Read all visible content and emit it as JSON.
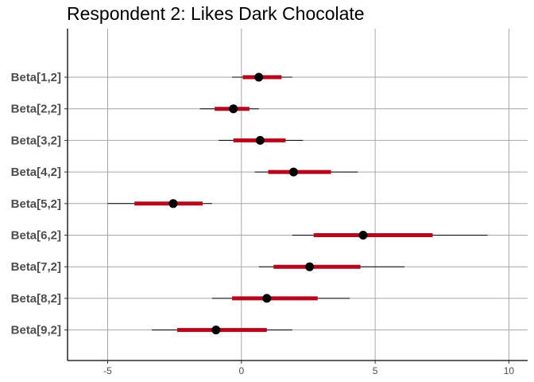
{
  "chart_data": {
    "type": "interval",
    "title": "Respondent 2: Likes Dark Chocolate",
    "xlabel": "",
    "ylabel": "",
    "xlim": [
      -6.5,
      10.7
    ],
    "x_ticks": [
      -5,
      0,
      5,
      10
    ],
    "x_tick_labels": [
      "-5",
      "0",
      "5",
      "10"
    ],
    "grid": true,
    "categories": [
      "Beta[1,2]",
      "Beta[2,2]",
      "Beta[3,2]",
      "Beta[4,2]",
      "Beta[5,2]",
      "Beta[6,2]",
      "Beta[7,2]",
      "Beta[8,2]",
      "Beta[9,2]"
    ],
    "series": [
      {
        "median": 0.65,
        "inner": [
          0.05,
          1.5
        ],
        "outer": [
          -0.35,
          1.9
        ]
      },
      {
        "median": -0.3,
        "inner": [
          -1.0,
          0.3
        ],
        "outer": [
          -1.55,
          0.65
        ]
      },
      {
        "median": 0.7,
        "inner": [
          -0.3,
          1.65
        ],
        "outer": [
          -0.85,
          2.3
        ]
      },
      {
        "median": 1.95,
        "inner": [
          1.0,
          3.35
        ],
        "outer": [
          0.5,
          4.35
        ]
      },
      {
        "median": -2.55,
        "inner": [
          -4.0,
          -1.45
        ],
        "outer": [
          -5.0,
          -1.1
        ]
      },
      {
        "median": 4.55,
        "inner": [
          2.7,
          7.15
        ],
        "outer": [
          1.9,
          9.2
        ]
      },
      {
        "median": 2.55,
        "inner": [
          1.2,
          4.45
        ],
        "outer": [
          0.65,
          6.1
        ]
      },
      {
        "median": 0.95,
        "inner": [
          -0.35,
          2.85
        ],
        "outer": [
          -1.1,
          4.05
        ]
      },
      {
        "median": -0.95,
        "inner": [
          -2.4,
          0.95
        ],
        "outer": [
          -3.35,
          1.9
        ]
      }
    ],
    "colors": {
      "inner": "#b5081c",
      "outer": "#000000",
      "point": "#000000",
      "grid": "#a6a6a6"
    }
  }
}
